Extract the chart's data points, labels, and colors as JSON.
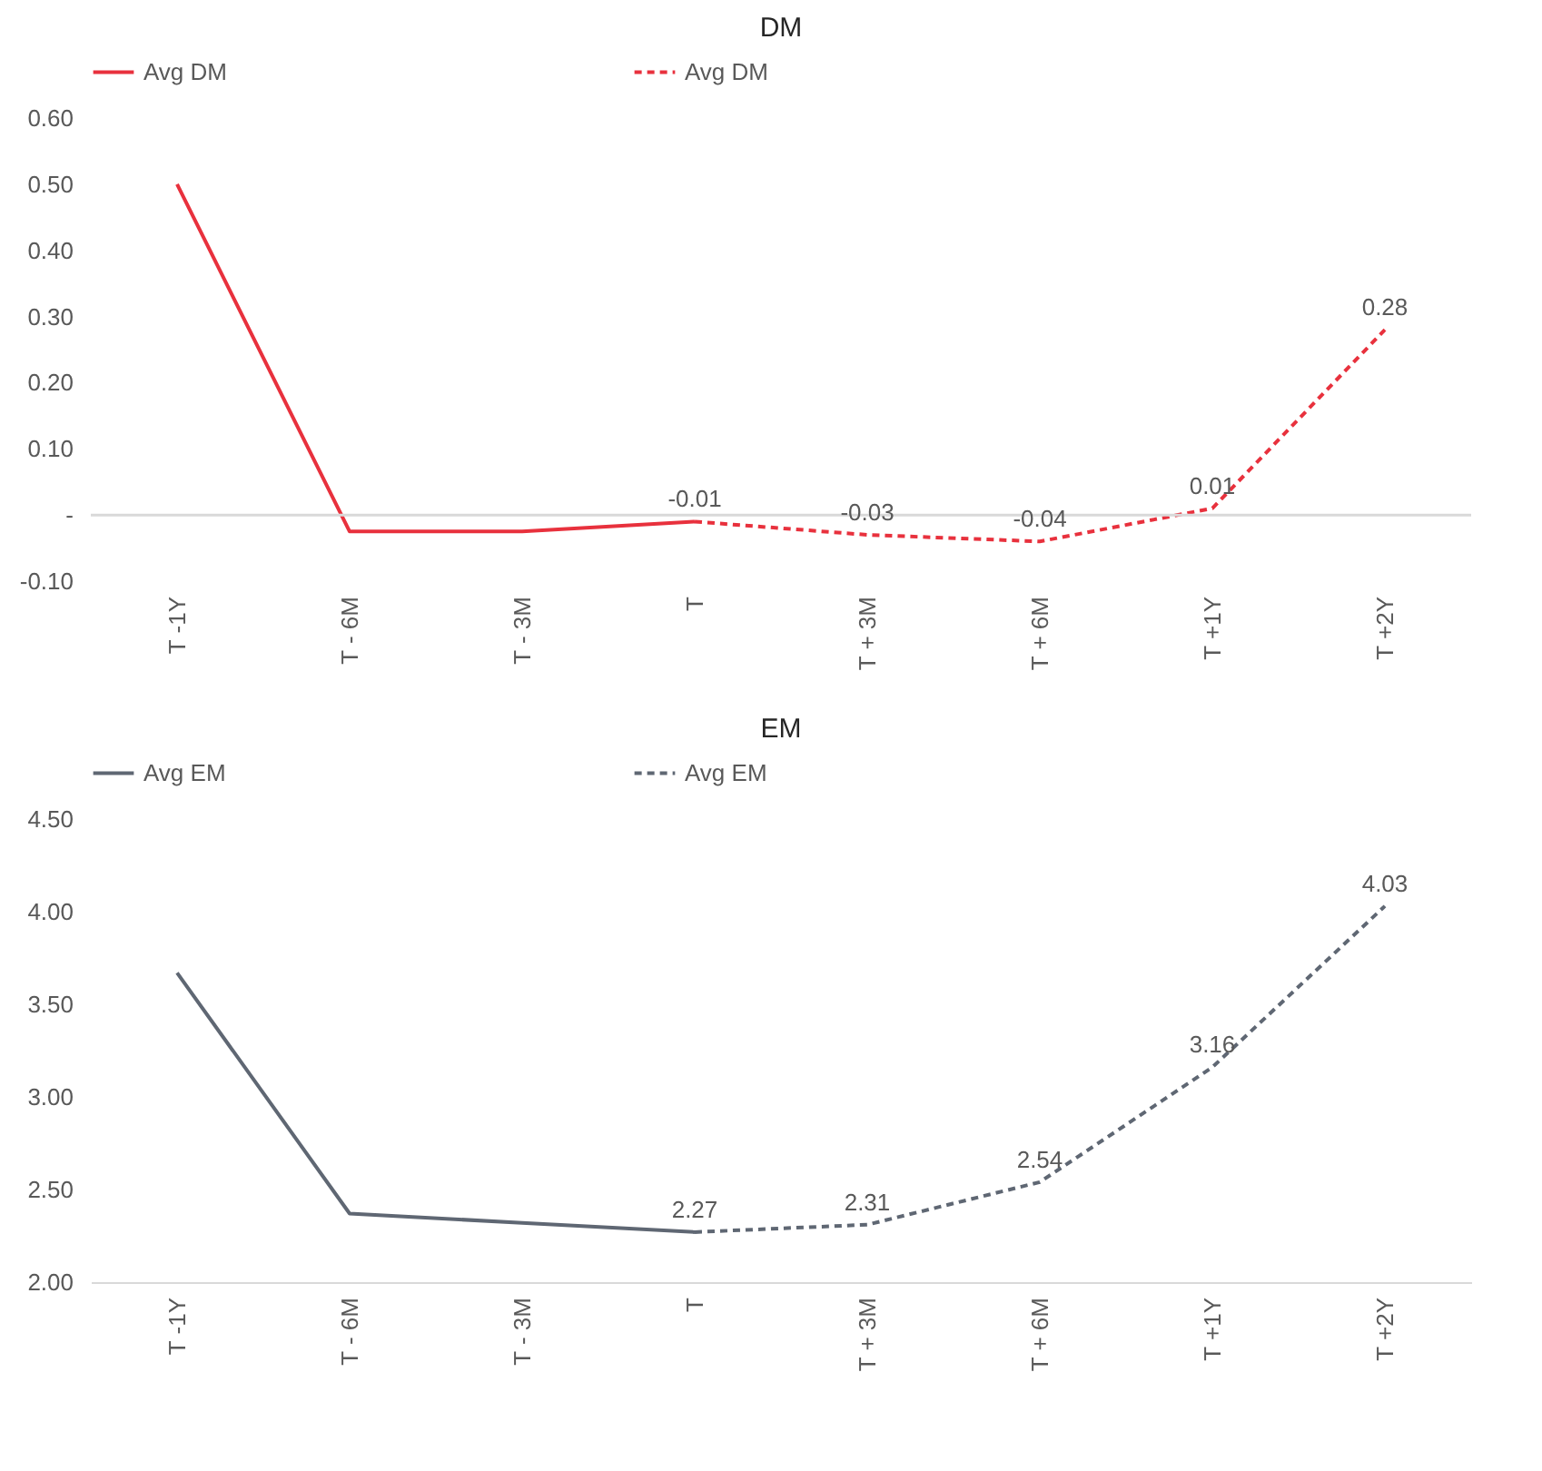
{
  "chart_data": [
    {
      "type": "line",
      "title": "DM",
      "categories": [
        "T -1Y",
        "T - 6M",
        "T - 3M",
        "T",
        "T + 3M",
        "T + 6M",
        "T +1Y",
        "T +2Y"
      ],
      "series": [
        {
          "name": "Avg DM",
          "color": "#e8313d",
          "line_style": "solid",
          "values": [
            0.5,
            -0.025,
            -0.025,
            -0.01,
            null,
            null,
            null,
            null
          ]
        },
        {
          "name": "Avg DM",
          "color": "#e8313d",
          "line_style": "dashed",
          "values": [
            null,
            null,
            null,
            -0.01,
            -0.03,
            -0.04,
            0.01,
            0.28
          ],
          "value_labels": [
            null,
            null,
            null,
            "-0.01",
            "-0.03",
            "-0.04",
            "0.01",
            "0.28"
          ]
        }
      ],
      "ylim": [
        -0.1,
        0.6
      ],
      "yticks": [
        {
          "value": -0.1,
          "label": "-0.10"
        },
        {
          "value": 0,
          "label": "-"
        },
        {
          "value": 0.1,
          "label": "0.10"
        },
        {
          "value": 0.2,
          "label": "0.20"
        },
        {
          "value": 0.3,
          "label": "0.30"
        },
        {
          "value": 0.4,
          "label": "0.40"
        },
        {
          "value": 0.5,
          "label": "0.50"
        },
        {
          "value": 0.6,
          "label": "0.60"
        }
      ],
      "ref_lines": [
        {
          "axis": "y",
          "value": 0,
          "color": "#d9d9d9"
        }
      ],
      "legend": "top",
      "grid": false
    },
    {
      "type": "line",
      "title": "EM",
      "categories": [
        "T -1Y",
        "T - 6M",
        "T - 3M",
        "T",
        "T + 3M",
        "T + 6M",
        "T +1Y",
        "T +2Y"
      ],
      "series": [
        {
          "name": "Avg EM",
          "color": "#5f6773",
          "line_style": "solid",
          "values": [
            3.67,
            2.37,
            2.32,
            2.27,
            null,
            null,
            null,
            null
          ]
        },
        {
          "name": "Avg EM",
          "color": "#5f6773",
          "line_style": "dashed",
          "values": [
            null,
            null,
            null,
            2.27,
            2.31,
            2.54,
            3.16,
            4.03
          ],
          "value_labels": [
            null,
            null,
            null,
            "2.27",
            "2.31",
            "2.54",
            "3.16",
            "4.03"
          ]
        }
      ],
      "ylim": [
        2.0,
        4.5
      ],
      "yticks": [
        {
          "value": 2,
          "label": "2.00"
        },
        {
          "value": 2.5,
          "label": "2.50"
        },
        {
          "value": 3,
          "label": "3.00"
        },
        {
          "value": 3.5,
          "label": "3.50"
        },
        {
          "value": 4,
          "label": "4.00"
        },
        {
          "value": 4.5,
          "label": "4.50"
        }
      ],
      "legend": "top",
      "grid": false
    }
  ]
}
